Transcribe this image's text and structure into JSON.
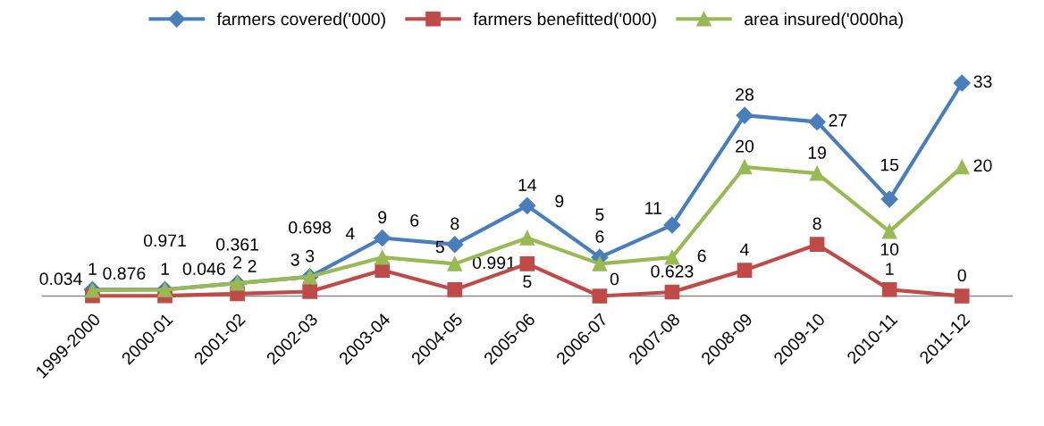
{
  "chart_data": {
    "type": "line",
    "categories": [
      "1999-2000",
      "2000-01",
      "2001-02",
      "2002-03",
      "2003-04",
      "2004-05",
      "2005-06",
      "2006-07",
      "2007-08",
      "2008-09",
      "2009-10",
      "2010-11",
      "2011-12"
    ],
    "series": [
      {
        "name": "farmers covered('000)",
        "color": "#4a7ebb",
        "marker": "diamond",
        "values": [
          1,
          1,
          2,
          3,
          9,
          8,
          14,
          6,
          11,
          28,
          27,
          15,
          33
        ]
      },
      {
        "name": "farmers benefitted('000)",
        "color": "#be4b48",
        "marker": "square",
        "values": [
          0.034,
          0.046,
          0.361,
          0.698,
          4,
          0.991,
          5,
          0,
          0.623,
          4,
          8,
          1,
          0
        ]
      },
      {
        "name": "area insured('000ha)",
        "color": "#98b954",
        "marker": "triangle",
        "values": [
          0.876,
          0.971,
          2,
          3,
          6,
          5,
          9,
          5,
          6,
          20,
          19,
          10,
          20
        ]
      }
    ],
    "data_labels": true,
    "legend": "top",
    "grid": false,
    "line_style": "solid"
  }
}
